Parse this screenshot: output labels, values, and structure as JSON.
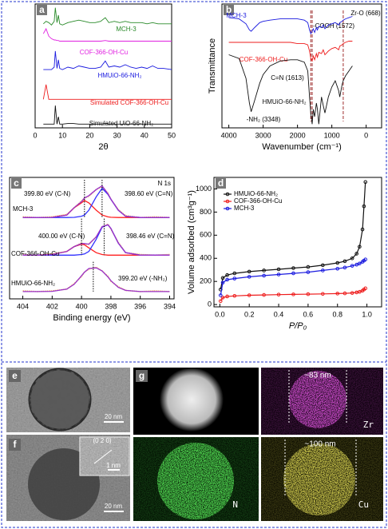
{
  "chart_data": [
    {
      "type": "line",
      "label": "a",
      "xlabel": "2θ",
      "xlim": [
        0,
        50
      ],
      "xticks": [
        0,
        10,
        20,
        30,
        40,
        50
      ],
      "ylim": [
        0,
        10
      ],
      "x": [
        3,
        4,
        5,
        6,
        7,
        7.4,
        8,
        8.5,
        9,
        10,
        12,
        14,
        16,
        18,
        20,
        22,
        24,
        25.7,
        27,
        29,
        31,
        33,
        35,
        37,
        39,
        41,
        43,
        45,
        47,
        50
      ],
      "series": [
        {
          "name": "MCH-3",
          "color": "#2a8a2a",
          "values": [
            8.4,
            8.6,
            8.5,
            8.3,
            8.6,
            9.7,
            8.5,
            9.1,
            8.4,
            8.3,
            8.5,
            8.6,
            8.7,
            8.6,
            8.5,
            8.5,
            8.6,
            8.9,
            8.5,
            8.6,
            8.5,
            8.6,
            8.5,
            8.5,
            8.5,
            8.4,
            8.5,
            8.4,
            8.4,
            8.4
          ]
        },
        {
          "name": "COF-366-OH-Cu",
          "color": "#e020e0",
          "values": [
            7.6,
            8.0,
            7.4,
            7.2,
            7.1,
            7.1,
            7.05,
            7.05,
            7.0,
            7.0,
            7.0,
            7.0,
            7.0,
            7.0,
            7.0,
            7.0,
            7.0,
            7.05,
            7.0,
            7.0,
            7.0,
            7.0,
            7.0,
            7.0,
            7.0,
            7.0,
            7.0,
            7.0,
            7.0,
            7.0
          ]
        },
        {
          "name": "HMUiO-66-NH₂",
          "color": "#1a1adf",
          "values": [
            4.7,
            4.7,
            4.7,
            4.7,
            4.9,
            6.2,
            4.8,
            5.5,
            4.8,
            4.7,
            4.9,
            4.8,
            5.0,
            4.9,
            4.8,
            4.8,
            4.9,
            5.4,
            4.9,
            5.0,
            4.9,
            5.1,
            4.9,
            4.8,
            4.9,
            4.8,
            5.0,
            4.8,
            4.8,
            4.7
          ]
        },
        {
          "name": "Simulated COF-366-OH-Cu",
          "color": "#ee1c1c",
          "values": [
            2.3,
            3.5,
            2.3,
            2.3,
            2.3,
            2.3,
            2.3,
            2.3,
            2.3,
            2.3,
            2.3,
            2.3,
            2.3,
            2.3,
            2.3,
            2.3,
            2.3,
            2.3,
            2.3,
            2.3,
            2.3,
            2.3,
            2.3,
            2.3,
            2.3,
            2.3,
            2.3,
            2.3,
            2.3,
            2.3
          ]
        },
        {
          "name": "Simulated UiO-66-NH₂",
          "color": "#111111",
          "values": [
            0.3,
            0.3,
            0.3,
            0.3,
            0.3,
            1.8,
            0.3,
            0.9,
            0.3,
            0.3,
            0.35,
            0.35,
            0.3,
            0.3,
            0.3,
            0.3,
            0.3,
            0.35,
            0.3,
            0.3,
            0.3,
            0.3,
            0.3,
            0.3,
            0.3,
            0.3,
            0.3,
            0.3,
            0.3,
            0.3
          ]
        }
      ]
    },
    {
      "type": "line",
      "label": "b",
      "xlabel": "Wavenumber (cm⁻¹)",
      "ylabel": "Transmittance",
      "xlim": [
        4200,
        -450
      ],
      "xticks": [
        4000,
        3000,
        2000,
        1000,
        0
      ],
      "ylim": [
        0,
        10
      ],
      "x": [
        4000,
        3700,
        3500,
        3400,
        3348,
        3250,
        3100,
        3000,
        2800,
        2500,
        2200,
        2000,
        1800,
        1700,
        1650,
        1613,
        1572,
        1540,
        1500,
        1450,
        1420,
        1380,
        1300,
        1250,
        1200,
        1100,
        1000,
        900,
        800,
        768,
        700,
        668,
        600,
        500,
        400
      ],
      "series": [
        {
          "name": "MCH-3",
          "color": "#1a1adf",
          "values": [
            8.9,
            8.8,
            8.4,
            7.9,
            7.8,
            8.1,
            8.5,
            8.6,
            8.7,
            8.8,
            8.8,
            8.8,
            8.7,
            8.5,
            7.9,
            7.6,
            7.8,
            8.0,
            7.7,
            8.1,
            7.9,
            8.2,
            8.1,
            8.3,
            8.0,
            8.3,
            8.4,
            8.5,
            8.3,
            8.5,
            8.6,
            8.7,
            8.8,
            8.9,
            9.0
          ]
        },
        {
          "name": "COF-366-OH-Cu",
          "color": "#ee1c1c",
          "values": [
            6.9,
            6.9,
            6.9,
            6.9,
            6.9,
            6.9,
            6.9,
            6.9,
            6.9,
            6.9,
            6.9,
            6.8,
            6.8,
            6.7,
            6.2,
            5.6,
            5.4,
            5.8,
            5.5,
            6.0,
            5.7,
            6.1,
            6.0,
            6.3,
            5.9,
            6.2,
            6.4,
            6.5,
            6.3,
            6.6,
            6.7,
            6.8,
            6.9,
            7.0,
            7.0
          ]
        },
        {
          "name": "HMUiO-66-NH₂",
          "color": "#111111",
          "values": [
            5.9,
            5.6,
            4.0,
            2.0,
            1.3,
            2.2,
            3.6,
            4.3,
            5.0,
            5.4,
            5.5,
            5.5,
            5.3,
            4.6,
            2.5,
            1.2,
            0.3,
            1.5,
            0.9,
            2.0,
            1.5,
            0.3,
            2.5,
            1.8,
            1.2,
            2.5,
            3.3,
            3.8,
            3.0,
            2.5,
            3.5,
            3.8,
            4.2,
            4.6,
            5.0
          ]
        }
      ],
      "vlines": [
        1613,
        1572,
        668
      ],
      "annotations": [
        "-COOH (1572)",
        "Zr-O (668)",
        "C=N (1613)",
        "-NH₂ (3348)"
      ]
    },
    {
      "type": "line",
      "label": "c",
      "xlabel": "Binding energy (eV)",
      "xlim": [
        404.9,
        393.7
      ],
      "xticks": [
        404,
        402,
        400,
        398,
        396,
        394
      ],
      "ylim": [
        0,
        10
      ],
      "note": "N 1s",
      "x": [
        404,
        403,
        402,
        401,
        400.5,
        400,
        399.8,
        399.5,
        399,
        398.6,
        398.2,
        398,
        397.5,
        397,
        396,
        395,
        394
      ],
      "spectra": [
        {
          "label": "MCH-3",
          "raw": [
            6.75,
            6.7,
            6.75,
            6.95,
            7.5,
            8.05,
            8.3,
            8.45,
            9.0,
            9.25,
            8.7,
            8.2,
            7.35,
            6.85,
            6.7,
            6.75,
            6.7
          ],
          "fits": [
            {
              "color": "#ff2020",
              "values": [
                6.7,
                6.7,
                6.71,
                6.9,
                7.5,
                7.9,
                8.1,
                7.9,
                7.3,
                6.9,
                6.75,
                6.72,
                6.7,
                6.7,
                6.7,
                6.7,
                6.7
              ]
            },
            {
              "color": "#3030ff",
              "values": [
                6.7,
                6.7,
                6.7,
                6.7,
                6.71,
                6.8,
                6.9,
                7.3,
                8.4,
                9.1,
                8.6,
                8.2,
                7.3,
                6.8,
                6.7,
                6.7,
                6.7
              ]
            }
          ],
          "envelope": [
            6.7,
            6.7,
            6.71,
            6.9,
            7.51,
            8.0,
            8.3,
            8.5,
            9.0,
            9.3,
            8.65,
            8.22,
            7.3,
            6.8,
            6.7,
            6.7,
            6.7
          ],
          "peaks": [
            {
              "position": 399.8,
              "label": "399.80 eV (C-N)"
            },
            {
              "position": 398.6,
              "label": "398.60 eV (C=N)"
            }
          ]
        },
        {
          "label": "COF-366-OH-Cu",
          "raw": [
            3.65,
            3.6,
            3.7,
            3.9,
            4.3,
            4.6,
            4.5,
            4.5,
            5.1,
            5.9,
            6.15,
            5.75,
            4.65,
            3.8,
            3.65,
            3.6,
            3.65
          ],
          "fits": [
            {
              "color": "#ff2020",
              "values": [
                3.6,
                3.6,
                3.65,
                3.9,
                4.3,
                4.5,
                4.45,
                4.2,
                3.8,
                3.65,
                3.6,
                3.6,
                3.6,
                3.6,
                3.6,
                3.6,
                3.6
              ]
            },
            {
              "color": "#3030ff",
              "values": [
                3.6,
                3.6,
                3.6,
                3.6,
                3.6,
                3.65,
                3.7,
                3.9,
                4.9,
                5.9,
                6.1,
                5.8,
                4.6,
                3.8,
                3.6,
                3.6,
                3.6
              ]
            }
          ],
          "envelope": [
            3.6,
            3.6,
            3.65,
            3.9,
            4.3,
            4.55,
            4.55,
            4.5,
            5.1,
            5.95,
            6.1,
            5.8,
            4.6,
            3.8,
            3.6,
            3.6,
            3.6
          ],
          "peaks": [
            {
              "position": 400.0,
              "label": "400.00 eV (C-N)"
            },
            {
              "position": 398.46,
              "label": "398.46 eV (C=N)"
            }
          ]
        },
        {
          "label": "HMUiO-66-NH₂",
          "raw": [
            0.65,
            0.6,
            0.65,
            0.8,
            1.25,
            1.85,
            2.2,
            2.45,
            2.6,
            2.3,
            1.85,
            1.45,
            1.0,
            0.7,
            0.6,
            0.65,
            0.6
          ],
          "fits": [],
          "envelope": [
            0.6,
            0.6,
            0.62,
            0.8,
            1.2,
            1.9,
            2.2,
            2.5,
            2.55,
            2.3,
            1.8,
            1.5,
            0.95,
            0.7,
            0.6,
            0.6,
            0.6
          ],
          "peaks": [
            {
              "position": 399.2,
              "label": "399.20 eV (-NH₂)"
            }
          ]
        }
      ]
    },
    {
      "type": "line",
      "label": "d",
      "xlabel": "P/P₀",
      "ylabel": "Volume adsorbed (cm³g⁻¹)",
      "xlim": [
        -0.04,
        1.1
      ],
      "xticks": [
        {
          "value": 0,
          "label": "0.0"
        },
        0.2,
        0.4,
        0.6,
        0.8,
        {
          "value": 1,
          "label": "1.0"
        }
      ],
      "ylim": [
        -20,
        1100
      ],
      "yticks": [
        0,
        200,
        400,
        600,
        800,
        1000
      ],
      "legend": "upper left",
      "markers": true,
      "x": [
        0.005,
        0.02,
        0.05,
        0.1,
        0.2,
        0.3,
        0.4,
        0.5,
        0.6,
        0.7,
        0.8,
        0.85,
        0.9,
        0.93,
        0.95,
        0.97,
        0.98,
        0.99
      ],
      "series": [
        {
          "name": "HMUiO-66-NH₂",
          "color": "#111111",
          "values": [
            130,
            230,
            255,
            270,
            285,
            295,
            305,
            315,
            325,
            340,
            360,
            375,
            400,
            440,
            500,
            650,
            850,
            1060
          ]
        },
        {
          "name": "COF-366-OH-Cu",
          "color": "#ee1c1c",
          "values": [
            30,
            60,
            70,
            75,
            80,
            83,
            86,
            88,
            90,
            92,
            95,
            97,
            100,
            105,
            110,
            120,
            130,
            140
          ]
        },
        {
          "name": "MCH-3",
          "color": "#1a1adf",
          "values": [
            80,
            190,
            215,
            225,
            240,
            250,
            260,
            270,
            280,
            295,
            310,
            320,
            335,
            345,
            355,
            370,
            380,
            390
          ]
        }
      ]
    }
  ],
  "images": [
    {
      "label": "e",
      "scale_bar": "20 nm"
    },
    {
      "label": "f",
      "scale_bar": "20 nm",
      "inset_plane": "(0 2 0)",
      "inset_scale": "1 nm"
    },
    {
      "label": "g",
      "maps": [
        {
          "element": "Zr",
          "size": "~83 nm"
        },
        {
          "element": "N"
        },
        {
          "element": "Cu",
          "size": "~100 nm"
        }
      ]
    }
  ]
}
